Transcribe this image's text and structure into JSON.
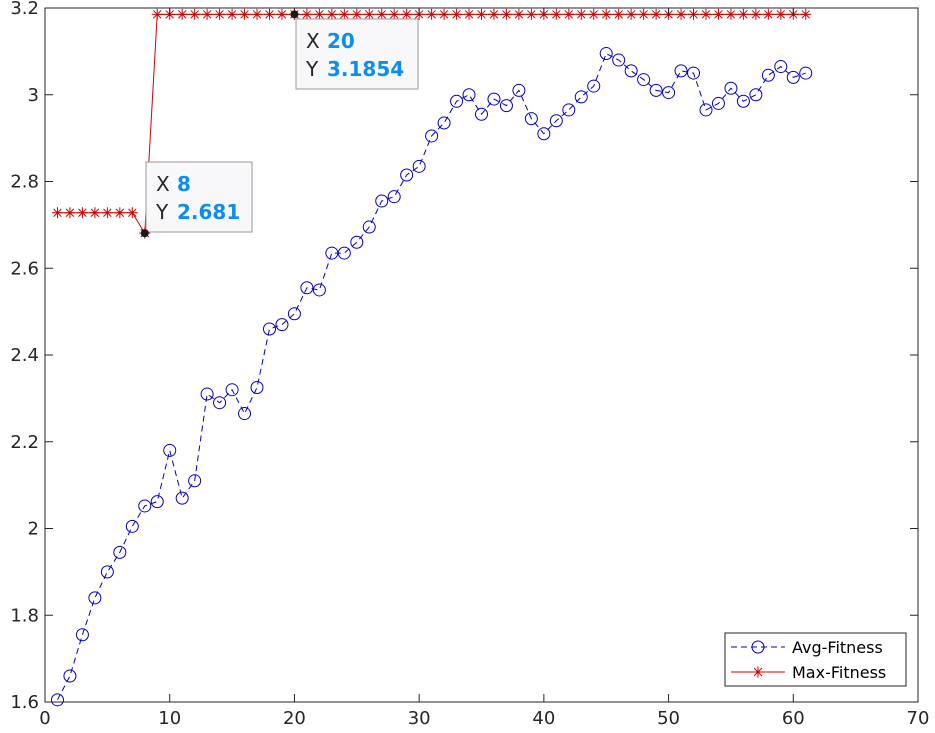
{
  "chart_data": {
    "type": "line",
    "title": "",
    "xlabel": "",
    "ylabel": "",
    "xlim": [
      0,
      70
    ],
    "ylim": [
      1.6,
      3.2
    ],
    "xticks": [
      0,
      10,
      20,
      30,
      40,
      50,
      60,
      70
    ],
    "yticks": [
      1.6,
      1.8,
      2,
      2.2,
      2.4,
      2.6,
      2.8,
      3,
      3.2
    ],
    "grid": false,
    "legend_position": "bottom-right",
    "series": [
      {
        "name": "Avg-Fitness",
        "color": "#0000cc",
        "line_style": "dashed",
        "marker": "circle",
        "x": [
          1,
          2,
          3,
          4,
          5,
          6,
          7,
          8,
          9,
          10,
          11,
          12,
          13,
          14,
          15,
          16,
          17,
          18,
          19,
          20,
          21,
          22,
          23,
          24,
          25,
          26,
          27,
          28,
          29,
          30,
          31,
          32,
          33,
          34,
          35,
          36,
          37,
          38,
          39,
          40,
          41,
          42,
          43,
          44,
          45,
          46,
          47,
          48,
          49,
          50,
          51,
          52,
          53,
          54,
          55,
          56,
          57,
          58,
          59,
          60,
          61
        ],
        "y": [
          1.605,
          1.66,
          1.755,
          1.84,
          1.9,
          1.945,
          2.005,
          2.052,
          2.062,
          2.18,
          2.07,
          2.11,
          2.31,
          2.29,
          2.32,
          2.265,
          2.325,
          2.46,
          2.47,
          2.495,
          2.555,
          2.55,
          2.635,
          2.635,
          2.66,
          2.695,
          2.755,
          2.765,
          2.815,
          2.835,
          2.905,
          2.935,
          2.985,
          3.0,
          2.955,
          2.99,
          2.975,
          3.01,
          2.945,
          2.91,
          2.94,
          2.965,
          2.995,
          3.02,
          3.095,
          3.08,
          3.055,
          3.035,
          3.01,
          3.005,
          3.055,
          3.05,
          2.965,
          2.98,
          3.015,
          2.985,
          3.0,
          3.045,
          3.065,
          3.04,
          3.05
        ]
      },
      {
        "name": "Max-Fitness",
        "color": "#d40000",
        "line_style": "solid",
        "marker": "asterisk",
        "x": [
          1,
          2,
          3,
          4,
          5,
          6,
          7,
          8,
          9,
          10,
          11,
          12,
          13,
          14,
          15,
          16,
          17,
          18,
          19,
          20,
          21,
          22,
          23,
          24,
          25,
          26,
          27,
          28,
          29,
          30,
          31,
          32,
          33,
          34,
          35,
          36,
          37,
          38,
          39,
          40,
          41,
          42,
          43,
          44,
          45,
          46,
          47,
          48,
          49,
          50,
          51,
          52,
          53,
          54,
          55,
          56,
          57,
          58,
          59,
          60,
          61
        ],
        "y": [
          2.728,
          2.728,
          2.728,
          2.728,
          2.728,
          2.728,
          2.728,
          2.681,
          3.1854,
          3.1854,
          3.1854,
          3.1854,
          3.1854,
          3.1854,
          3.1854,
          3.1854,
          3.1854,
          3.1854,
          3.1854,
          3.1854,
          3.1854,
          3.1854,
          3.1854,
          3.1854,
          3.1854,
          3.1854,
          3.1854,
          3.1854,
          3.1854,
          3.1854,
          3.1854,
          3.1854,
          3.1854,
          3.1854,
          3.1854,
          3.1854,
          3.1854,
          3.1854,
          3.1854,
          3.1854,
          3.1854,
          3.1854,
          3.1854,
          3.1854,
          3.1854,
          3.1854,
          3.1854,
          3.1854,
          3.1854,
          3.1854,
          3.1854,
          3.1854,
          3.1854,
          3.1854,
          3.1854,
          3.1854,
          3.1854,
          3.1854,
          3.1854,
          3.1854,
          3.1854
        ]
      }
    ],
    "datatips": [
      {
        "x_label": "X",
        "x_value": "8",
        "y_label": "Y",
        "y_value": "2.681",
        "point": [
          8,
          2.681
        ]
      },
      {
        "x_label": "X",
        "x_value": "20",
        "y_label": "Y",
        "y_value": "3.1854",
        "point": [
          20,
          3.1854
        ]
      }
    ]
  }
}
